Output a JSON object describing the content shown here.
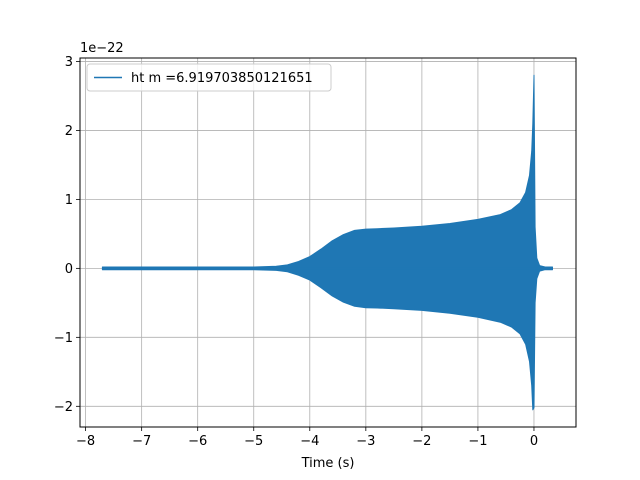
{
  "chart_data": {
    "type": "line",
    "title": "",
    "xlabel": "Time (s)",
    "ylabel": "",
    "y_offset_label": "1e−22",
    "xlim": [
      -8.1,
      0.75
    ],
    "ylim": [
      -2.3,
      3.05
    ],
    "xticks": [
      -8,
      -7,
      -6,
      -5,
      -4,
      -3,
      -2,
      -1,
      0
    ],
    "xtick_labels": [
      "−8",
      "−7",
      "−6",
      "−5",
      "−4",
      "−3",
      "−2",
      "−1",
      "0"
    ],
    "yticks": [
      -2,
      -1,
      0,
      1,
      2,
      3
    ],
    "ytick_labels": [
      "−2",
      "−1",
      "0",
      "1",
      "2",
      "3"
    ],
    "grid": true,
    "legend_position": "top-left",
    "series": [
      {
        "name": "ht m =6.919703850121651",
        "color": "#1f77b4",
        "x": [
          -7.7,
          -6.0,
          -5.0,
          -4.6,
          -4.4,
          -4.2,
          -4.0,
          -3.8,
          -3.6,
          -3.4,
          -3.2,
          -3.0,
          -2.8,
          -2.5,
          -2.0,
          -1.5,
          -1.0,
          -0.6,
          -0.4,
          -0.25,
          -0.15,
          -0.08,
          -0.04,
          -0.02,
          0.0,
          0.02,
          0.05,
          0.1,
          0.2,
          0.33
        ],
        "upper": [
          0.02,
          0.02,
          0.02,
          0.03,
          0.05,
          0.1,
          0.17,
          0.28,
          0.4,
          0.49,
          0.55,
          0.57,
          0.575,
          0.585,
          0.61,
          0.65,
          0.71,
          0.78,
          0.85,
          0.95,
          1.1,
          1.35,
          1.7,
          2.1,
          2.8,
          0.6,
          0.15,
          0.04,
          0.02,
          0.02
        ],
        "lower": [
          -0.02,
          -0.02,
          -0.02,
          -0.03,
          -0.05,
          -0.1,
          -0.17,
          -0.28,
          -0.4,
          -0.49,
          -0.55,
          -0.57,
          -0.575,
          -0.585,
          -0.61,
          -0.65,
          -0.71,
          -0.78,
          -0.85,
          -0.95,
          -1.1,
          -1.35,
          -1.7,
          -2.05,
          -2.02,
          -0.5,
          -0.15,
          -0.04,
          -0.02,
          -0.02
        ]
      }
    ]
  }
}
